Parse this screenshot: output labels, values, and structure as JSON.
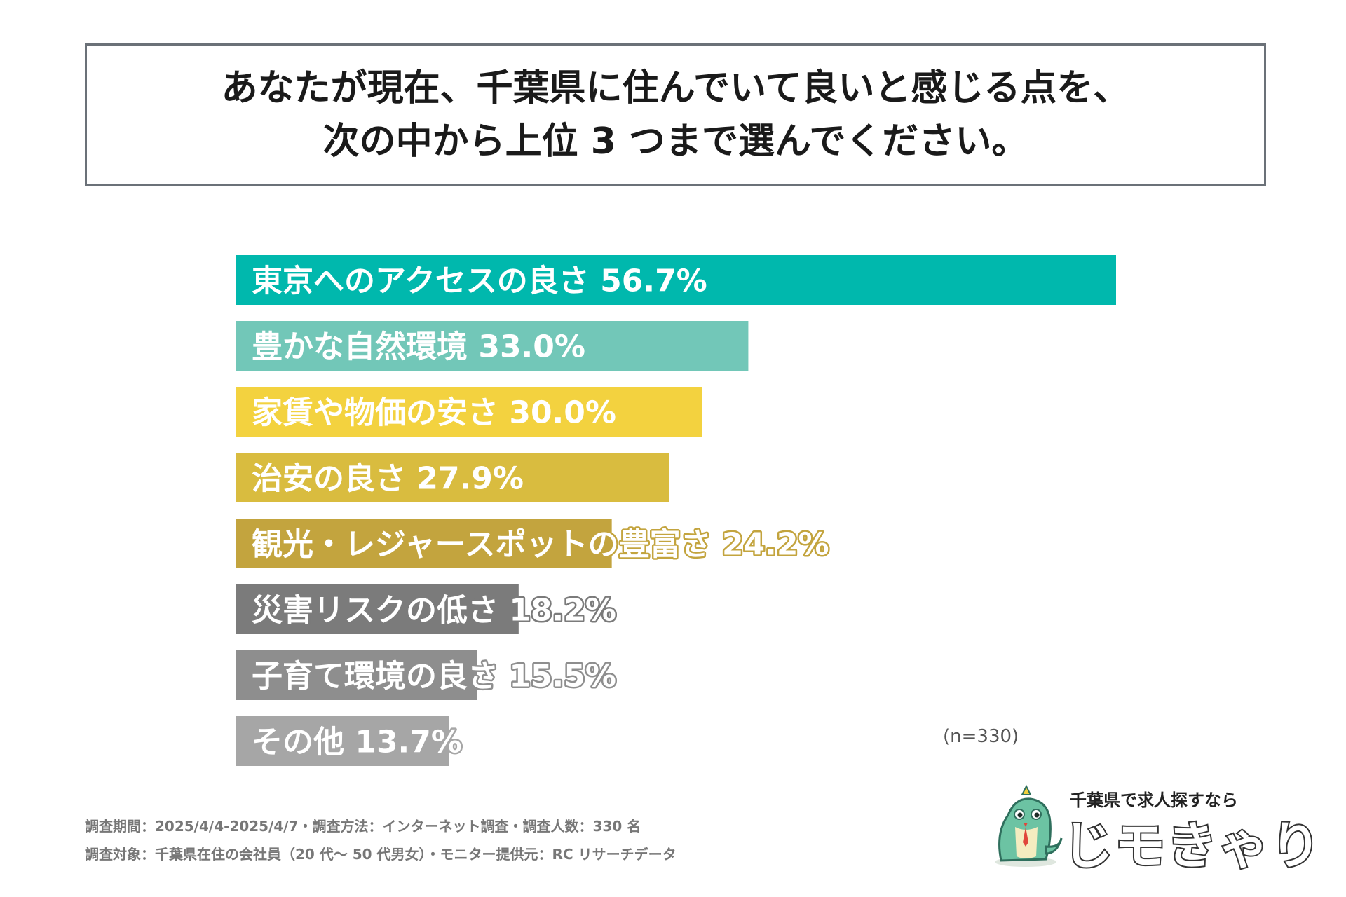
{
  "title": {
    "line1": "あなたが現在、千葉県に住んでいて良いと感じる点を、",
    "line2": "次の中から上位 3 つまで選んでください。"
  },
  "chart_data": {
    "type": "bar",
    "orientation": "horizontal",
    "unit": "%",
    "categories": [
      "東京へのアクセスの良さ",
      "豊かな自然環境",
      "家賃や物価の安さ",
      "治安の良さ",
      "観光・レジャースポットの豊富さ",
      "災害リスクの低さ",
      "子育て環境の良さ",
      "その他"
    ],
    "values": [
      56.7,
      33.0,
      30.0,
      27.9,
      24.2,
      18.2,
      15.5,
      13.7
    ],
    "value_labels": [
      "56.7%",
      "33.0%",
      "30.0%",
      "27.9%",
      "24.2%",
      "18.2%",
      "15.5%",
      "13.7%"
    ],
    "colors": [
      "#00b8ad",
      "#72c7b8",
      "#f3d23f",
      "#d9bc3f",
      "#c3a43e",
      "#7b7b7b",
      "#8e8e8e",
      "#a6a6a6"
    ],
    "xlim": [
      0,
      56.7
    ],
    "grid": false,
    "legend": "none"
  },
  "sample_size": "(n=330)",
  "footer": {
    "line1": "調査期間：2025/4/4-2025/4/7・調査方法：インターネット調査・調査人数：330 名",
    "line2": "調査対象：千葉県在住の会社員（20 代～ 50 代男女）・モニター提供元：RC リサーチデータ"
  },
  "logo": {
    "tagline": "千葉県で求人探すなら",
    "name": "じモきゃり"
  },
  "icons": {
    "mascot": "green-dinosaur-mascot-icon"
  }
}
